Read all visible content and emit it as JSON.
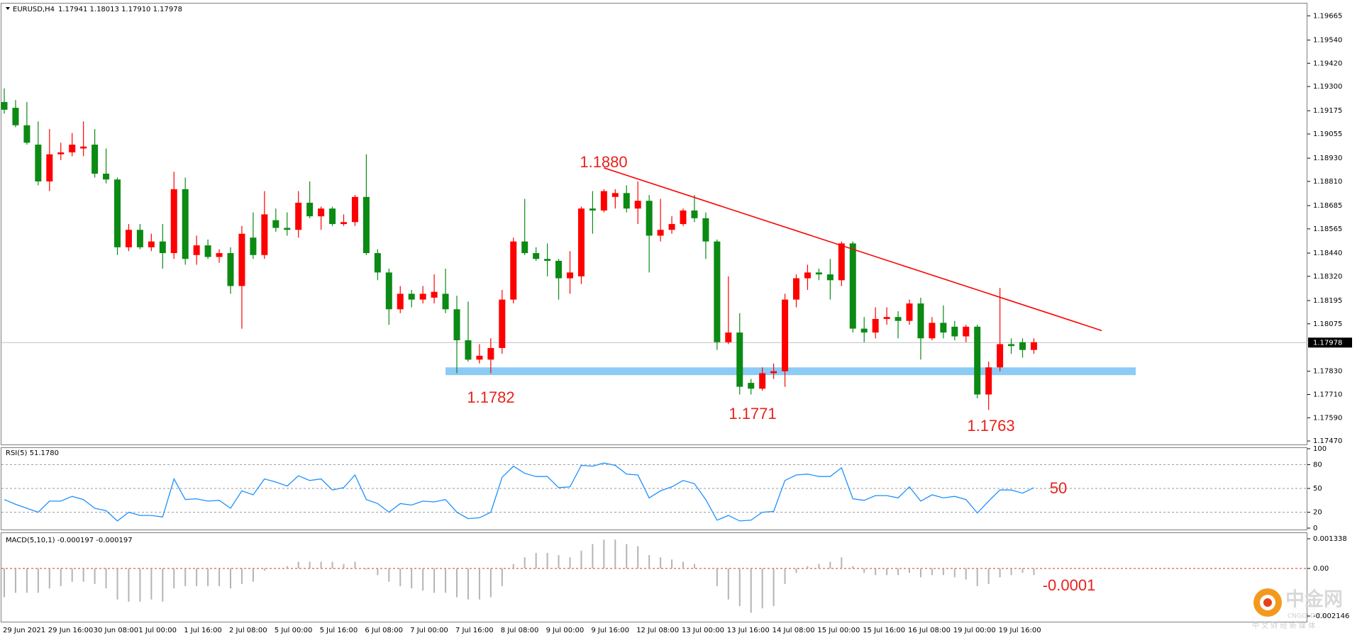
{
  "chart_data": [
    {
      "type": "candlestick",
      "title": "EURUSD,H4",
      "subtitle": "1.17941 1.18013 1.17910 1.17978",
      "categories": [
        "29 Jun 2021",
        null,
        null,
        null,
        "29 Jun 16:00",
        null,
        null,
        null,
        "30 Jun 08:00",
        null,
        null,
        null,
        "1 Jul 00:00",
        null,
        null,
        null,
        "1 Jul 16:00",
        null,
        null,
        null,
        "2 Jul 08:00",
        null,
        null,
        null,
        "5 Jul 00:00",
        null,
        null,
        null,
        "5 Jul 16:00",
        null,
        null,
        null,
        "6 Jul 08:00",
        null,
        null,
        null,
        "7 Jul 00:00",
        null,
        null,
        null,
        "7 Jul 16:00",
        null,
        null,
        null,
        "8 Jul 08:00",
        null,
        null,
        null,
        "9 Jul 00:00",
        null,
        null,
        null,
        "9 Jul 16:00",
        null,
        null,
        null,
        "12 Jul 08:00",
        null,
        null,
        null,
        "13 Jul 00:00",
        null,
        null,
        null,
        "13 Jul 16:00",
        null,
        null,
        null,
        "14 Jul 08:00",
        null,
        null,
        null,
        "15 Jul 00:00",
        null,
        null,
        null,
        "15 Jul 16:00",
        null,
        null,
        null,
        "16 Jul 08:00",
        null,
        null,
        null,
        "19 Jul 00:00",
        null,
        null,
        null,
        "19 Jul 16:00",
        null,
        null,
        null
      ],
      "open": [
        1.1922,
        1.1919,
        1.191,
        1.19,
        1.1881,
        1.1895,
        1.1896,
        1.1898,
        1.19,
        1.1885,
        1.1882,
        1.1847,
        1.1856,
        1.1847,
        1.185,
        1.1844,
        1.1877,
        1.1843,
        1.1848,
        1.1842,
        1.1844,
        1.1827,
        1.1852,
        1.1843,
        1.1861,
        1.1857,
        1.1856,
        1.187,
        1.1863,
        1.1867,
        1.1859,
        1.186,
        1.1873,
        1.1844,
        1.1834,
        1.1815,
        1.1823,
        1.182,
        1.1821,
        1.1823,
        1.1815,
        1.1799,
        1.1789,
        1.1789,
        1.1795,
        1.182,
        1.185,
        1.1844,
        1.1841,
        1.184,
        1.1831,
        1.1832,
        1.1867,
        1.1866,
        1.1873,
        1.1875,
        1.1867,
        1.1871,
        1.1853,
        1.1856,
        1.1859,
        1.1866,
        1.1862,
        1.185,
        1.1798,
        1.1803,
        1.1777,
        1.1774,
        1.1782,
        1.1783,
        1.182,
        1.1831,
        1.1834,
        1.1833,
        1.183,
        1.1849,
        1.1805,
        1.1803,
        1.181,
        1.1811,
        1.1809,
        1.1818,
        1.18,
        1.1808,
        1.1806,
        1.1801,
        1.1806,
        1.1771,
        1.1785,
        1.1797,
        1.1798,
        1.1794
      ],
      "high": [
        1.1929,
        1.1923,
        1.1922,
        1.1912,
        1.1908,
        1.1901,
        1.1906,
        1.1912,
        1.1908,
        1.1898,
        1.1883,
        1.1859,
        1.1859,
        1.1854,
        1.1859,
        1.1886,
        1.1883,
        1.1853,
        1.1851,
        1.1846,
        1.1847,
        1.1858,
        1.1865,
        1.1876,
        1.1867,
        1.1865,
        1.1876,
        1.1881,
        1.1868,
        1.1868,
        1.1864,
        1.1874,
        1.1895,
        1.1846,
        1.1836,
        1.1827,
        1.1825,
        1.1827,
        1.1833,
        1.1836,
        1.1822,
        1.1819,
        1.1797,
        1.18,
        1.1825,
        1.1852,
        1.1872,
        1.1847,
        1.1849,
        1.1841,
        1.1845,
        1.1868,
        1.1876,
        1.1877,
        1.1877,
        1.1879,
        1.1881,
        1.1874,
        1.1872,
        1.1863,
        1.1867,
        1.1874,
        1.1865,
        1.1851,
        1.1832,
        1.1813,
        1.1779,
        1.1785,
        1.1787,
        1.1823,
        1.1833,
        1.1838,
        1.1836,
        1.1841,
        1.185,
        1.185,
        1.1811,
        1.1816,
        1.1816,
        1.1814,
        1.182,
        1.1821,
        1.1811,
        1.1817,
        1.1809,
        1.1807,
        1.1807,
        1.1788,
        1.1826,
        1.18,
        1.18,
        1.18
      ],
      "low": [
        1.1916,
        1.1909,
        1.19,
        1.1879,
        1.1876,
        1.1892,
        1.1894,
        1.1894,
        1.1883,
        1.188,
        1.1843,
        1.1845,
        1.1846,
        1.1845,
        1.1836,
        1.1841,
        1.1838,
        1.1838,
        1.1841,
        1.1839,
        1.1823,
        1.1805,
        1.1841,
        1.1841,
        1.1855,
        1.1853,
        1.1852,
        1.1862,
        1.1856,
        1.1858,
        1.1858,
        1.1858,
        1.1843,
        1.183,
        1.1807,
        1.1813,
        1.1816,
        1.1818,
        1.1818,
        1.1813,
        1.1782,
        1.1788,
        1.1787,
        1.1782,
        1.1792,
        1.1818,
        1.1843,
        1.184,
        1.1832,
        1.182,
        1.1823,
        1.1828,
        1.1854,
        1.1865,
        1.1867,
        1.1865,
        1.1859,
        1.1834,
        1.185,
        1.1854,
        1.1858,
        1.186,
        1.1841,
        1.1794,
        1.1797,
        1.1771,
        1.1771,
        1.1773,
        1.1779,
        1.1775,
        1.1816,
        1.1825,
        1.183,
        1.182,
        1.1827,
        1.1803,
        1.1798,
        1.18,
        1.1807,
        1.18,
        1.1807,
        1.1789,
        1.1799,
        1.18,
        1.1799,
        1.1798,
        1.1769,
        1.1763,
        1.1783,
        1.1792,
        1.179,
        1.1792
      ],
      "close": [
        1.1918,
        1.191,
        1.1901,
        1.1881,
        1.1895,
        1.1896,
        1.19,
        1.1899,
        1.1885,
        1.1882,
        1.1847,
        1.1856,
        1.1847,
        1.185,
        1.1844,
        1.1877,
        1.1841,
        1.1848,
        1.1842,
        1.1844,
        1.1827,
        1.1854,
        1.1843,
        1.1864,
        1.1857,
        1.1856,
        1.187,
        1.1863,
        1.1867,
        1.1859,
        1.186,
        1.1873,
        1.1844,
        1.1834,
        1.1815,
        1.1823,
        1.182,
        1.1823,
        1.1824,
        1.1815,
        1.1799,
        1.1789,
        1.1791,
        1.1795,
        1.182,
        1.185,
        1.1844,
        1.1841,
        1.184,
        1.1831,
        1.1834,
        1.1867,
        1.1866,
        1.1876,
        1.1875,
        1.1867,
        1.1871,
        1.1853,
        1.1856,
        1.1859,
        1.1866,
        1.1862,
        1.185,
        1.1798,
        1.1803,
        1.1775,
        1.1774,
        1.1782,
        1.1783,
        1.182,
        1.1831,
        1.1834,
        1.1833,
        1.183,
        1.1849,
        1.1805,
        1.1803,
        1.181,
        1.1811,
        1.1809,
        1.1818,
        1.18,
        1.1808,
        1.1803,
        1.1801,
        1.1806,
        1.1771,
        1.1785,
        1.1797,
        1.1796,
        1.1794,
        1.1798
      ],
      "up_color": "#ff0000",
      "down_color": "#0b8a14",
      "ylim": [
        1.17452,
        1.19732
      ],
      "yticks": [
        1.19665,
        {
          "value": 1.1954,
          "label": "1.19540"
        },
        {
          "value": 1.1942,
          "label": "1.19420"
        },
        {
          "value": 1.193,
          "label": "1.19300"
        },
        1.19175,
        1.19055,
        {
          "value": 1.1893,
          "label": "1.18930"
        },
        {
          "value": 1.1881,
          "label": "1.18810"
        },
        1.18685,
        1.18565,
        {
          "value": 1.1844,
          "label": "1.18440"
        },
        {
          "value": 1.1832,
          "label": "1.18320"
        },
        1.18195,
        1.18075,
        {
          "value": 1.1783,
          "label": "1.17830"
        },
        {
          "value": 1.1771,
          "label": "1.17710"
        },
        {
          "value": 1.1759,
          "label": "1.17590"
        },
        {
          "value": 1.1747,
          "label": "1.17470"
        }
      ],
      "last_price": 1.17978,
      "trendline": {
        "x": [
          53,
          97
        ],
        "y": [
          1.1888,
          1.1804
        ],
        "color": "#ff0000"
      },
      "support_zone": {
        "x": [
          39,
          100
        ],
        "y": [
          1.1781,
          1.1785
        ],
        "color": "#8ccbf5"
      },
      "annotations": [
        "1.1880",
        "1.1782",
        "1.1771",
        "1.1763"
      ]
    },
    {
      "type": "line",
      "title": "RSI(5) 51.1780",
      "color": "#1e90ff",
      "values": [
        36,
        30,
        25,
        20,
        34,
        34,
        40,
        36,
        25,
        22,
        9,
        20,
        16,
        16,
        14,
        62,
        36,
        37,
        34,
        35,
        25,
        47,
        42,
        62,
        58,
        53,
        66,
        60,
        62,
        48,
        51,
        67,
        36,
        31,
        20,
        31,
        29,
        34,
        33,
        36,
        20,
        12,
        13,
        20,
        64,
        78,
        69,
        65,
        65,
        51,
        52,
        79,
        78,
        82,
        79,
        68,
        67,
        38,
        47,
        52,
        60,
        56,
        36,
        10,
        16,
        9,
        10,
        20,
        21,
        60,
        67,
        68,
        65,
        65,
        76,
        37,
        35,
        41,
        41,
        38,
        52,
        34,
        42,
        38,
        40,
        36,
        19,
        34,
        48,
        48,
        44,
        51
      ],
      "ylim": [
        0,
        100
      ],
      "yticks": [
        100,
        80,
        50,
        20,
        0
      ],
      "grid": true,
      "grid_color": "#9a9a9a",
      "annotations": [
        "50"
      ]
    },
    {
      "type": "bar",
      "title": "MACD(5,10,1) -0.000197 -0.000197",
      "color": "#b4b4b4",
      "values": [
        -0.0013,
        -0.0011,
        -0.0011,
        -0.0011,
        -0.0009,
        -0.0008,
        -0.0006,
        -0.0006,
        -0.0007,
        -0.0009,
        -0.0014,
        -0.0015,
        -0.0015,
        -0.0014,
        -0.0015,
        -0.0009,
        -0.0008,
        -0.0008,
        -0.0008,
        -0.0008,
        -0.0009,
        -0.0007,
        -0.0006,
        -0.0001,
        0,
        0.0001,
        0.0003,
        0.0003,
        0.0003,
        0.0003,
        0.0002,
        0.0003,
        -5e-05,
        -0.0003,
        -0.0006,
        -0.0008,
        -0.0009,
        -0.001,
        -0.0011,
        -0.0011,
        -0.0013,
        -0.0014,
        -0.0014,
        -0.0013,
        -0.0008,
        0.0002,
        0.0005,
        0.0007,
        0.0007,
        0.0006,
        0.0005,
        0.0008,
        0.0011,
        0.0013,
        0.0013,
        0.0011,
        0.001,
        0.0006,
        0.0005,
        0.0004,
        0.0003,
        0.0002,
        0,
        -0.0008,
        -0.0014,
        -0.0017,
        -0.002,
        -0.0018,
        -0.0017,
        -0.0007,
        -0.0002,
        0.0001,
        0.0002,
        0.0003,
        0.0005,
        0.0001,
        -0.0002,
        -0.0003,
        -0.0003,
        -0.0003,
        -0.0002,
        -0.0004,
        -0.0003,
        -0.0003,
        -0.0004,
        -0.0005,
        -0.0008,
        -0.0007,
        -0.0004,
        -0.0003,
        -0.0002,
        -0.0003
      ],
      "ylim": [
        -0.002146,
        0.001338
      ],
      "yticks": [
        0.001338,
        {
          "value": 0,
          "label": "0.00"
        },
        -0.002146
      ],
      "grid": true,
      "grid_color": "#e03030",
      "annotations": [
        "-0.0001"
      ]
    }
  ],
  "watermark": {
    "brand": "中金网",
    "site": "CNGOLD.CN",
    "tagline": "中 文 财 经 新 媒 体"
  }
}
